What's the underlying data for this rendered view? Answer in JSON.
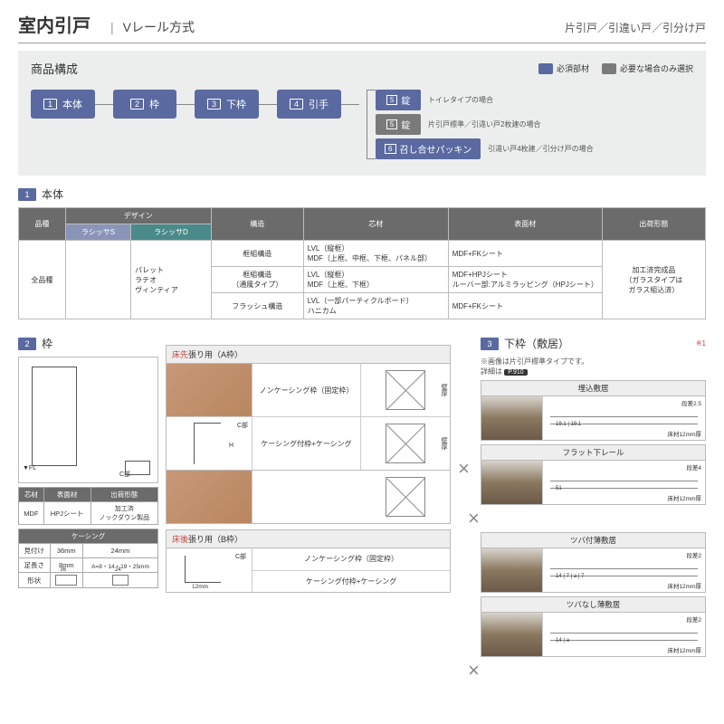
{
  "colors": {
    "primary": "#5a6aa0",
    "gray": "#7a7a7a",
    "teal": "#4a8a8a",
    "red": "#c8443c",
    "headerGray": "#6b6b6b"
  },
  "header": {
    "title": "室内引戸",
    "subtitle": "Vレール方式",
    "right": "片引戸／引違い戸／引分け戸"
  },
  "composition": {
    "title": "商品構成",
    "legend": [
      {
        "color": "#5a6aa0",
        "label": "必須部材"
      },
      {
        "color": "#7a7a7a",
        "label": "必要な場合のみ選択"
      }
    ],
    "main": [
      {
        "num": "1",
        "label": "本体"
      },
      {
        "num": "2",
        "label": "枠"
      },
      {
        "num": "3",
        "label": "下枠"
      },
      {
        "num": "4",
        "label": "引手"
      }
    ],
    "branch": [
      {
        "num": "5",
        "label": "錠",
        "color": "#5a6aa0",
        "note": "トイレタイプの場合"
      },
      {
        "num": "5",
        "label": "錠",
        "color": "#7a7a7a",
        "note": "片引戸標準／引違い戸2枚建の場合"
      },
      {
        "num": "6",
        "label": "召し合せパッキン",
        "color": "#5a6aa0",
        "note": "引違い戸4枚建／引分け戸の場合"
      }
    ]
  },
  "section1": {
    "num": "1",
    "title": "本体",
    "headers": {
      "type": "品種",
      "design": "デザイン",
      "s": "ラシッサS",
      "d": "ラシッサD",
      "structure": "構造",
      "core": "芯材",
      "surface": "表面材",
      "ship": "出荷形態"
    },
    "rows": {
      "type": "全品種",
      "designs": "パレット\nラテオ\nヴィンティア",
      "r": [
        {
          "structure": "框組構造",
          "core": "LVL（縦框）\nMDF（上框、中框、下框、パネル部）",
          "surface": "MDF+FKシート"
        },
        {
          "structure": "框組構造\n（通風タイプ）",
          "core": "LVL（縦框）\nMDF（上框、下框）",
          "surface": "MDF+HPJシート\nルーバー部:アルミラッピング（HPJシート）"
        },
        {
          "structure": "フラッシュ構造",
          "core": "LVL（一部パーティクルボード）\nハニカム",
          "surface": "MDF+FKシート"
        }
      ],
      "ship": "加工済完成品\n（ガラスタイプは\nガラス組込済）"
    }
  },
  "section2": {
    "num": "2",
    "title": "枠",
    "fl": "▼FL",
    "clabel": "C部",
    "mat": {
      "h": [
        "芯材",
        "表面材",
        "出荷形態"
      ],
      "r": [
        "MDF",
        "HPJシート",
        "加工済\nノックダウン製品"
      ]
    },
    "casing": {
      "title": "ケーシング",
      "h": [
        "見付け",
        "36mm",
        "24mm"
      ],
      "r1": [
        "足長さ",
        "8mm",
        "A=8・14・19・25mm"
      ],
      "r2": "形状",
      "d1": "36",
      "d2": "24"
    },
    "groupA": {
      "head_red": "床先",
      "head": "張り用（A枠）",
      "rows": [
        {
          "label": "ノンケーシング枠（固定枠）",
          "dim1": "枠見込み",
          "dim2": "壁厚"
        },
        {
          "label": "ケーシング付枠+ケーシング",
          "dim1": "枠見込み",
          "dim2": "壁厚"
        }
      ],
      "side": {
        "c": "C部",
        "h": "H"
      }
    },
    "groupB": {
      "head_red": "床後",
      "head": "張り用（B枠）",
      "labels": [
        "ノンケーシング枠（固定枠）",
        "ケーシング付枠+ケーシング"
      ],
      "c": "C部",
      "dim": "12mm"
    }
  },
  "section3": {
    "num": "3",
    "title": "下枠（敷居）",
    "note": "※画像は片引戸標準タイプです。",
    "ref_label": "詳細は",
    "ref": "P.910",
    "red": "※1",
    "items": [
      {
        "title": "埋込敷居",
        "step": "段差2.5",
        "dims": [
          "19.1",
          "19.1"
        ],
        "floor": "床材12mm厚"
      },
      {
        "title": "フラット下レール",
        "step": "段差4",
        "dims": [
          "51"
        ],
        "floor": "床材12mm厚"
      },
      {
        "title": "ツバ付薄敷居",
        "step": "段差2",
        "dims": [
          "14",
          "7",
          "a",
          "7"
        ],
        "floor": "床材12mm厚"
      },
      {
        "title": "ツバなし薄敷居",
        "step": "段差2",
        "dims": [
          "14",
          "a"
        ],
        "floor": "床材12mm厚"
      }
    ]
  }
}
